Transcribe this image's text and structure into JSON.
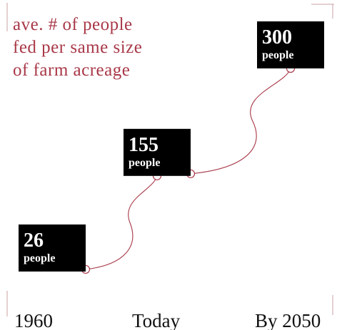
{
  "colors": {
    "accent": "#a83848",
    "box": "#000000",
    "box_text": "#ffffff",
    "label_text": "#111111",
    "corner_mark": "#c9a0a6"
  },
  "chart_data": {
    "type": "line",
    "title": "ave. # of people fed per same size of farm acreage",
    "title_lines": [
      "ave. # of people",
      "fed per same size",
      "of farm acreage"
    ],
    "categories": [
      "1960",
      "Today",
      "By 2050"
    ],
    "series": [
      {
        "values": [
          26,
          155,
          300
        ],
        "unit": "people"
      }
    ],
    "ylim": [
      0,
      300
    ],
    "grid": false,
    "legend": "none"
  }
}
